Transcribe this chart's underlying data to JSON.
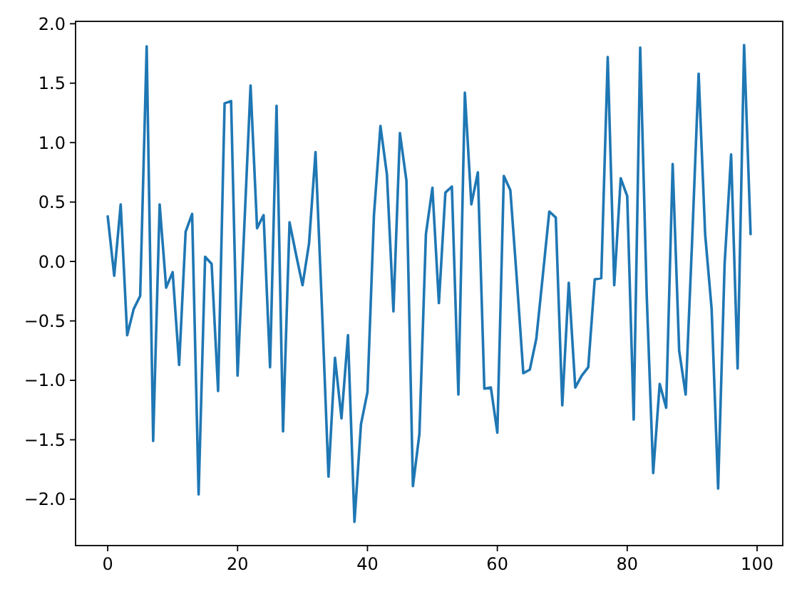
{
  "chart_data": {
    "type": "line",
    "x": [
      0,
      1,
      2,
      3,
      4,
      5,
      6,
      7,
      8,
      9,
      10,
      11,
      12,
      13,
      14,
      15,
      16,
      17,
      18,
      19,
      20,
      21,
      22,
      23,
      24,
      25,
      26,
      27,
      28,
      29,
      30,
      31,
      32,
      33,
      34,
      35,
      36,
      37,
      38,
      39,
      40,
      41,
      42,
      43,
      44,
      45,
      46,
      47,
      48,
      49,
      50,
      51,
      52,
      53,
      54,
      55,
      56,
      57,
      58,
      59,
      60,
      61,
      62,
      63,
      64,
      65,
      66,
      67,
      68,
      69,
      70,
      71,
      72,
      73,
      74,
      75,
      76,
      77,
      78,
      79,
      80,
      81,
      82,
      83,
      84,
      85,
      86,
      87,
      88,
      89,
      90,
      91,
      92,
      93,
      94,
      95,
      96,
      97,
      98,
      99
    ],
    "series": [
      {
        "color": "#1f77b4",
        "values": [
          0.38,
          -0.12,
          0.48,
          -0.62,
          -0.4,
          -0.29,
          1.81,
          -1.51,
          0.48,
          -0.22,
          -0.09,
          -0.87,
          0.25,
          0.4,
          -1.96,
          0.04,
          -0.02,
          -1.09,
          1.33,
          1.35,
          -0.96,
          0.25,
          1.48,
          0.28,
          0.39,
          -0.89,
          1.31,
          -1.43,
          0.33,
          0.06,
          -0.2,
          0.15,
          0.92,
          -0.4,
          -1.81,
          -0.81,
          -1.32,
          -0.62,
          -2.19,
          -1.37,
          -1.1,
          0.39,
          1.14,
          0.73,
          -0.42,
          1.08,
          0.68,
          -1.89,
          -1.45,
          0.23,
          0.62,
          -0.35,
          0.58,
          0.63,
          -1.12,
          1.42,
          0.48,
          0.75,
          -1.07,
          -1.06,
          -1.44,
          0.72,
          0.6,
          -0.15,
          -0.94,
          -0.91,
          -0.65,
          -0.12,
          0.42,
          0.37,
          -1.21,
          -0.18,
          -1.06,
          -0.96,
          -0.89,
          -0.15,
          -0.14,
          1.72,
          -0.2,
          0.7,
          0.55,
          -1.33,
          1.8,
          -0.28,
          -1.78,
          -1.03,
          -1.23,
          0.82,
          -0.75,
          -1.12,
          0.18,
          1.58,
          0.23,
          -0.4,
          -1.91,
          -0.02,
          0.9,
          -0.9,
          1.82,
          0.23
        ]
      }
    ],
    "xlim": [
      -4.95,
      103.95
    ],
    "ylim": [
      -2.39,
      2.02
    ],
    "xticks": [
      0,
      20,
      40,
      60,
      80,
      100
    ],
    "yticks": [
      {
        "value": -2,
        "label": "−2.0"
      },
      {
        "value": -1.5,
        "label": "−1.5"
      },
      {
        "value": -1,
        "label": "−1.0"
      },
      {
        "value": -0.5,
        "label": "−0.5"
      },
      {
        "value": 0,
        "label": "0.0"
      },
      {
        "value": 0.5,
        "label": "0.5"
      },
      {
        "value": 1,
        "label": "1.0"
      },
      {
        "value": 1.5,
        "label": "1.5"
      },
      {
        "value": 2,
        "label": "2.0"
      }
    ],
    "grid": false,
    "marker": "none",
    "line_style": "solid"
  }
}
